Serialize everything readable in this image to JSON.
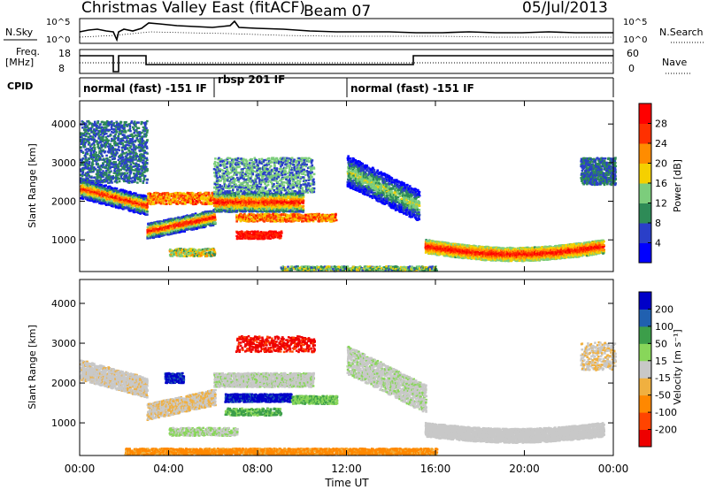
{
  "header": {
    "title": "Christmas Valley East (fitACF)",
    "beam": "Beam 07",
    "date": "05/Jul/2013"
  },
  "top_panels": {
    "nsky_label": "N.Sky",
    "nsearch_label": "N.Search",
    "nsky_ticks": [
      "10^5",
      "10^0"
    ],
    "nsearch_ticks": [
      "10^5",
      "10^0"
    ],
    "freq_label": "Freq.",
    "freq_unit": "[MHz]",
    "freq_ticks": [
      "18",
      "8"
    ],
    "nave_label": "Nave",
    "nave_ticks": [
      "60",
      "0"
    ],
    "cpid_label": "CPID",
    "cpid_segments": [
      {
        "label": "normal (fast) -151 IF",
        "start": 0.0,
        "end": 6.0
      },
      {
        "label": "rbsp 201 IF",
        "start": 6.0,
        "end": 12.0
      },
      {
        "label": "normal (fast) -151 IF",
        "start": 12.0,
        "end": 24.0
      }
    ]
  },
  "chart_data": [
    {
      "type": "heatmap",
      "name": "power",
      "ylabel": "Slant Range [km]",
      "yticks": [
        1000,
        2000,
        3000,
        4000
      ],
      "ylim": [
        180,
        4600
      ],
      "xlim": [
        0,
        24
      ],
      "colorbar_label": "Power [dB]",
      "colorbar_ticks": [
        "28",
        "24",
        "20",
        "16",
        "12",
        "8",
        "4"
      ],
      "colors": [
        "#0000ff",
        "#2a3fc8",
        "#2e8b57",
        "#7ccd7c",
        "#f5d000",
        "#ff8c00",
        "#ff3000",
        "#ff0000"
      ]
    },
    {
      "type": "heatmap",
      "name": "velocity",
      "ylabel": "Slant Range [km]",
      "yticks": [
        1000,
        2000,
        3000,
        4000
      ],
      "ylim": [
        180,
        4600
      ],
      "xlim": [
        0,
        24
      ],
      "xlabel": "Time UT",
      "xtick_labels": [
        "00:00",
        "04:00",
        "08:00",
        "12:00",
        "16:00",
        "20:00",
        "00:00"
      ],
      "colorbar_label": "Velocity [m s⁻¹]",
      "colorbar_ticks": [
        "200",
        "100",
        "50",
        "15",
        "-15",
        "-50",
        "-100",
        "-200"
      ],
      "colors": [
        "#0000c8",
        "#2060b0",
        "#3c9e4a",
        "#88d65a",
        "#c8c8c8",
        "#f0b040",
        "#ff8800",
        "#ff4400",
        "#ee0000"
      ]
    }
  ]
}
